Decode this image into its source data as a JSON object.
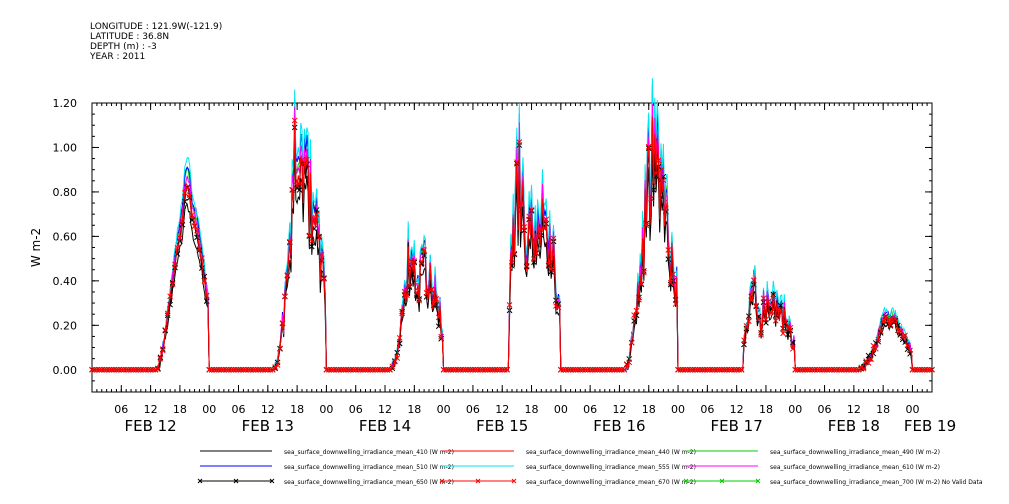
{
  "header": {
    "longitude": "LONGITUDE : 121.9W(-121.9)",
    "latitude": "LATITUDE : 36.8N",
    "depth": "DEPTH (m) : -3",
    "year": "YEAR : 2011"
  },
  "chart_data": {
    "type": "line",
    "ylabel": "W m-2",
    "ylim": [
      -0.1,
      1.2
    ],
    "yticks": [
      "0.00",
      "0.20",
      "0.40",
      "0.60",
      "0.80",
      "1.00",
      "1.20"
    ],
    "xlim_hours": [
      0,
      172
    ],
    "x_hour_ticks": [
      "06",
      "12",
      "18",
      "00",
      "06",
      "12",
      "18",
      "00",
      "06",
      "12",
      "18",
      "00",
      "06",
      "12",
      "18",
      "00",
      "06",
      "12",
      "18",
      "00",
      "06",
      "12",
      "18",
      "00",
      "06",
      "12",
      "18",
      "00"
    ],
    "date_labels": [
      "FEB 12",
      "FEB 13",
      "FEB 14",
      "FEB 15",
      "FEB 16",
      "FEB 17",
      "FEB 18",
      "FEB 19"
    ],
    "grid": false,
    "days": [
      {
        "day": "FEB 12",
        "peaks": [
          {
            "h": 19.5,
            "v": 0.9
          }
        ],
        "noisy": false
      },
      {
        "day": "FEB 13",
        "peaks": [
          {
            "h": 18,
            "v": 1.0
          },
          {
            "h": 19.5,
            "v": 0.95
          }
        ],
        "noisy": true
      },
      {
        "day": "FEB 14",
        "peaks": [
          {
            "h": 17.5,
            "v": 0.55
          },
          {
            "h": 20.5,
            "v": 0.45
          }
        ],
        "noisy": true
      },
      {
        "day": "FEB 15",
        "peaks": [
          {
            "h": 15.5,
            "v": 0.9
          },
          {
            "h": 17,
            "v": 0.6
          }
        ],
        "noisy": true
      },
      {
        "day": "FEB 16",
        "peaks": [
          {
            "h": 18.5,
            "v": 1.0
          },
          {
            "h": 19.5,
            "v": 0.95
          }
        ],
        "noisy": true
      },
      {
        "day": "FEB 17",
        "peaks": [
          {
            "h": 15.5,
            "v": 0.35
          },
          {
            "h": 18,
            "v": 0.3
          }
        ],
        "noisy": true
      },
      {
        "day": "FEB 18",
        "peaks": [
          {
            "h": 18.5,
            "v": 0.25
          },
          {
            "h": 20,
            "v": 0.25
          }
        ],
        "noisy": false
      }
    ],
    "series": [
      {
        "name": "sea_surface_downwelling_irradiance_mean_410 (W m-2)",
        "color": "#000000",
        "scale": 0.82,
        "marker": false
      },
      {
        "name": "sea_surface_downwelling_irradiance_mean_440 (W m-2)",
        "color": "#ff0000",
        "scale": 0.93,
        "marker": false
      },
      {
        "name": "sea_surface_downwelling_irradiance_mean_490 (W m-2)",
        "color": "#00cc00",
        "scale": 1.0,
        "marker": false
      },
      {
        "name": "sea_surface_downwelling_irradiance_mean_510 (W m-2)",
        "color": "#0000ff",
        "scale": 1.02,
        "marker": false
      },
      {
        "name": "sea_surface_downwelling_irradiance_mean_555 (W m-2)",
        "color": "#00e5ee",
        "scale": 1.06,
        "marker": false
      },
      {
        "name": "sea_surface_downwelling_irradiance_mean_610 (W m-2)",
        "color": "#ff00ff",
        "scale": 0.97,
        "marker": false
      },
      {
        "name": "sea_surface_downwelling_irradiance_mean_650 (W m-2)",
        "color": "#000000",
        "scale": 0.9,
        "marker": true
      },
      {
        "name": "sea_surface_downwelling_irradiance_mean_670 (W m-2)",
        "color": "#ff0000",
        "scale": 0.92,
        "marker": true
      },
      {
        "name": "sea_surface_downwelling_irradiance_mean_700 (W m-2) No Valid Data",
        "color": "#00cc00",
        "scale": 0,
        "marker": true
      }
    ]
  }
}
